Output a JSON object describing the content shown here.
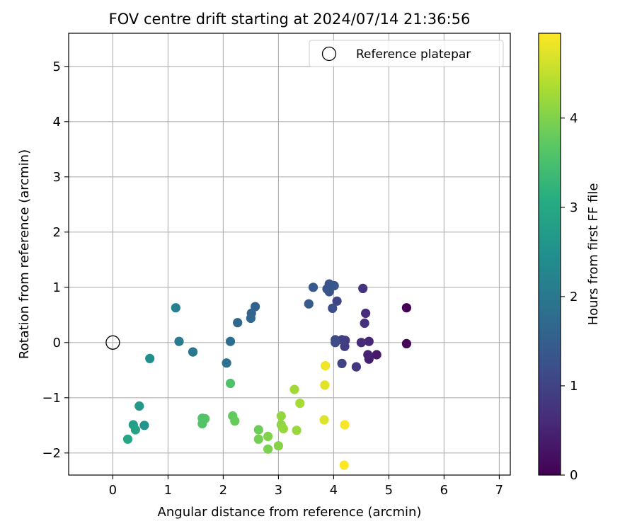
{
  "chart_data": {
    "type": "scatter",
    "title": "FOV centre drift starting at 2024/07/14 21:36:56",
    "xlabel": "Angular distance from reference (arcmin)",
    "ylabel": "Rotation from reference (arcmin)",
    "xlim": [
      -0.8,
      7.2
    ],
    "ylim": [
      -2.4,
      5.6
    ],
    "xticks": [
      0,
      1,
      2,
      3,
      4,
      5,
      6,
      7
    ],
    "yticks": [
      -2,
      -1,
      0,
      1,
      2,
      3,
      4,
      5
    ],
    "xtick_labels": [
      "0",
      "1",
      "2",
      "3",
      "4",
      "5",
      "6",
      "7"
    ],
    "ytick_labels": [
      "−2",
      "−1",
      "0",
      "1",
      "2",
      "3",
      "4",
      "5"
    ],
    "grid": true,
    "legend": {
      "position": "top-right",
      "entries": [
        {
          "label": "Reference platepar",
          "marker": "open-circle",
          "color": "#000000"
        }
      ]
    },
    "reference_point": {
      "x": 0,
      "y": 0
    },
    "colorbar": {
      "label": "Hours from first FF file",
      "colormap": "viridis",
      "range": [
        0,
        4.95
      ],
      "ticks": [
        0,
        1,
        2,
        3,
        4
      ],
      "tick_labels": [
        "0",
        "1",
        "2",
        "3",
        "4"
      ]
    },
    "series": [
      {
        "x": [
          5.32,
          5.32,
          4.78,
          4.64,
          4.62,
          4.64,
          4.5,
          4.58,
          4.56,
          4.53,
          4.41,
          4.21,
          4.2,
          4.15,
          4.15,
          4.06,
          4.03,
          4.03,
          3.98,
          3.96,
          3.92,
          3.92,
          3.88,
          3.94,
          4.01,
          3.63,
          3.55,
          2.58,
          2.51,
          2.5,
          2.26,
          2.13,
          2.06,
          1.45,
          1.2,
          1.14,
          0.67,
          0.57,
          0.48,
          0.37,
          0.41,
          0.27,
          2.13,
          1.67,
          1.62,
          1.62,
          2.17,
          2.21,
          2.64,
          2.64,
          2.81,
          2.81,
          3.0,
          3.05,
          3.05,
          3.09,
          3.33,
          3.29,
          3.39,
          3.83,
          3.84,
          3.85,
          4.2,
          4.19
        ],
        "y": [
          0.63,
          -0.02,
          -0.22,
          -0.3,
          -0.22,
          0.02,
          0.0,
          0.53,
          0.35,
          0.98,
          -0.44,
          0.04,
          -0.07,
          0.05,
          -0.38,
          0.75,
          0.05,
          0.0,
          0.62,
          1.03,
          0.92,
          1.06,
          0.97,
          0.99,
          1.03,
          1.0,
          0.7,
          0.65,
          0.53,
          0.44,
          0.36,
          0.02,
          -0.37,
          -0.17,
          0.02,
          0.63,
          -0.29,
          -1.5,
          -1.15,
          -1.49,
          -1.58,
          -1.75,
          -0.74,
          -1.38,
          -1.37,
          -1.47,
          -1.33,
          -1.42,
          -1.58,
          -1.75,
          -1.93,
          -1.7,
          -1.87,
          -1.49,
          -1.33,
          -1.56,
          -1.59,
          -0.85,
          -1.1,
          -1.4,
          -0.77,
          -0.42,
          -1.49,
          -2.22
        ],
        "c": [
          0.0,
          0.05,
          0.35,
          0.45,
          0.5,
          0.55,
          0.6,
          0.65,
          0.7,
          0.75,
          0.8,
          0.85,
          0.9,
          0.95,
          1.0,
          1.05,
          1.1,
          1.15,
          1.2,
          1.23,
          1.25,
          1.28,
          1.3,
          1.33,
          1.36,
          1.4,
          1.45,
          1.55,
          1.6,
          1.65,
          1.7,
          1.8,
          1.85,
          1.95,
          2.05,
          2.15,
          2.45,
          2.55,
          2.65,
          2.75,
          2.85,
          2.95,
          3.55,
          3.65,
          3.6,
          3.6,
          3.75,
          3.8,
          3.85,
          3.9,
          3.95,
          4.0,
          4.05,
          4.1,
          4.15,
          4.18,
          4.2,
          4.25,
          4.3,
          4.7,
          4.75,
          4.85,
          4.9,
          4.95
        ]
      }
    ]
  }
}
